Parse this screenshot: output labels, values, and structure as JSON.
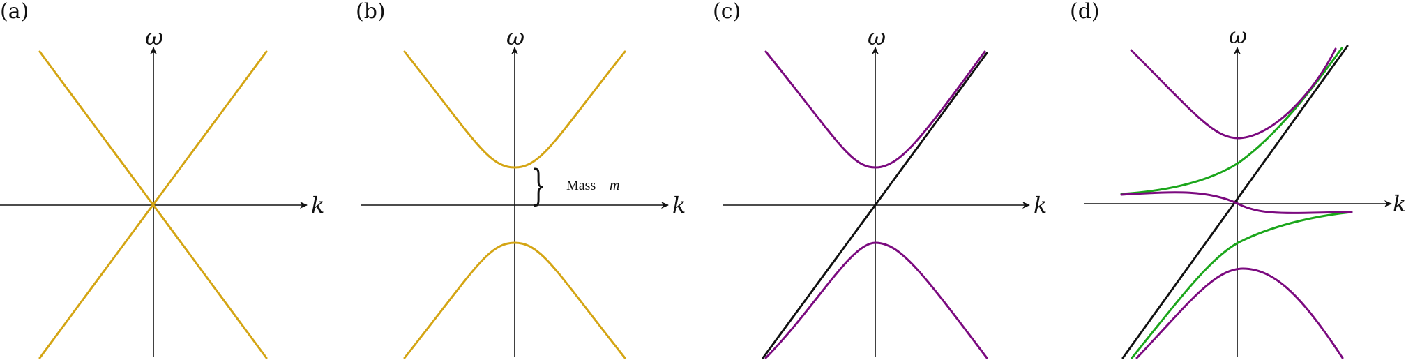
{
  "figure": {
    "colors": {
      "gold": "#D4A514",
      "purple": "#7B0A7F",
      "green": "#1BA61B",
      "black": "#111111"
    },
    "panels": [
      {
        "label": "(a)",
        "y_axis": "ω",
        "x_axis": "k",
        "annotation": null
      },
      {
        "label": "(b)",
        "y_axis": "ω",
        "x_axis": "k",
        "annotation": {
          "brace": "}",
          "text": "Mass",
          "symbol": "m"
        }
      },
      {
        "label": "(c)",
        "y_axis": "ω",
        "x_axis": "k",
        "annotation": null
      },
      {
        "label": "(d)",
        "y_axis": "ω",
        "x_axis": "k",
        "annotation": null
      }
    ]
  }
}
